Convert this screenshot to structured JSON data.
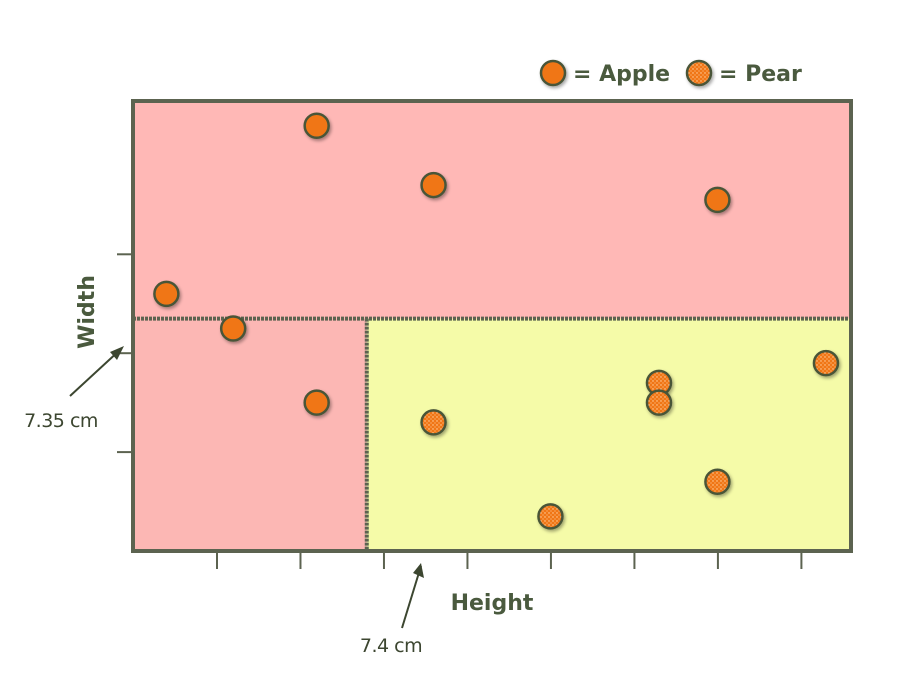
{
  "chart_data": {
    "type": "scatter",
    "title": "",
    "xlabel": "Height",
    "ylabel": "Width",
    "legend": {
      "placement": "top-right",
      "entries": [
        {
          "key": "apple",
          "label": "= Apple"
        },
        {
          "key": "pear",
          "label": "= Pear"
        }
      ]
    },
    "splits": {
      "x_label": "7.4 cm",
      "y_label": "7.35 cm"
    },
    "regions": [
      {
        "name": "upper",
        "color": "#ffb8b6"
      },
      {
        "name": "lower-left",
        "color": "#fcb7b4"
      },
      {
        "name": "lower-right",
        "color": "#f5fba8"
      }
    ],
    "colors": {
      "apple": "#f07618",
      "pear": "#f07618",
      "outline": "#4a5538",
      "border": "#5c6350"
    },
    "series": [
      {
        "kind": "apple",
        "points": [
          {
            "x": 6.2,
            "y": 7.6
          },
          {
            "x": 6.6,
            "y": 7.25
          },
          {
            "x": 7.1,
            "y": 9.3
          },
          {
            "x": 7.1,
            "y": 6.5
          },
          {
            "x": 7.8,
            "y": 8.7
          },
          {
            "x": 9.5,
            "y": 8.55
          }
        ]
      },
      {
        "kind": "pear",
        "points": [
          {
            "x": 7.8,
            "y": 6.3
          },
          {
            "x": 8.5,
            "y": 5.35
          },
          {
            "x": 9.15,
            "y": 6.7
          },
          {
            "x": 9.15,
            "y": 6.5
          },
          {
            "x": 9.5,
            "y": 5.7
          },
          {
            "x": 10.15,
            "y": 6.9
          }
        ]
      }
    ]
  }
}
